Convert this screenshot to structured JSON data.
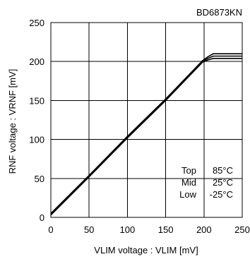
{
  "chart_data": {
    "type": "line",
    "title": "BD6873KN",
    "xlabel": "VLIM voltage : VLIM [mV]",
    "ylabel": "RNF voltage : VRNF [mV]",
    "xlim": [
      0,
      250
    ],
    "ylim": [
      0,
      250
    ],
    "xticks": [
      "0",
      "50",
      "100",
      "150",
      "200",
      "250"
    ],
    "yticks": [
      "0",
      "50",
      "100",
      "150",
      "200",
      "250"
    ],
    "grid": true,
    "legend_lines": [
      {
        "label": "Top",
        "value": "85°C"
      },
      {
        "label": "Mid",
        "value": "25°C"
      },
      {
        "label": "Low",
        "value": "-25°C"
      }
    ],
    "series": [
      {
        "x": [
          0,
          50,
          100,
          150,
          198,
          205,
          212,
          250
        ],
        "y": [
          5,
          54,
          104,
          152,
          201,
          206,
          210,
          210
        ]
      },
      {
        "x": [
          0,
          50,
          100,
          150,
          198,
          205,
          212,
          250
        ],
        "y": [
          4,
          53,
          103,
          151,
          200,
          204,
          207,
          207
        ]
      },
      {
        "x": [
          0,
          50,
          100,
          150,
          198,
          205,
          212,
          250
        ],
        "y": [
          3,
          52,
          102,
          150,
          199,
          202,
          204,
          204
        ]
      }
    ]
  }
}
